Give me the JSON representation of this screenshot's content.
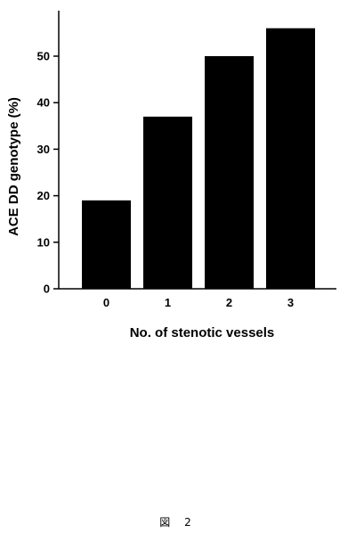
{
  "chart_data": {
    "type": "bar",
    "categories": [
      "0",
      "1",
      "2",
      "3"
    ],
    "values": [
      19,
      37,
      50,
      56
    ],
    "xlabel": "No. of stenotic vessels",
    "ylabel": "ACE DD genotype (%)",
    "ylim": [
      0,
      60
    ],
    "yticks": [
      0,
      10,
      20,
      30,
      40,
      50
    ],
    "grid": false,
    "bar_color": "#000000"
  },
  "caption": "図 2"
}
